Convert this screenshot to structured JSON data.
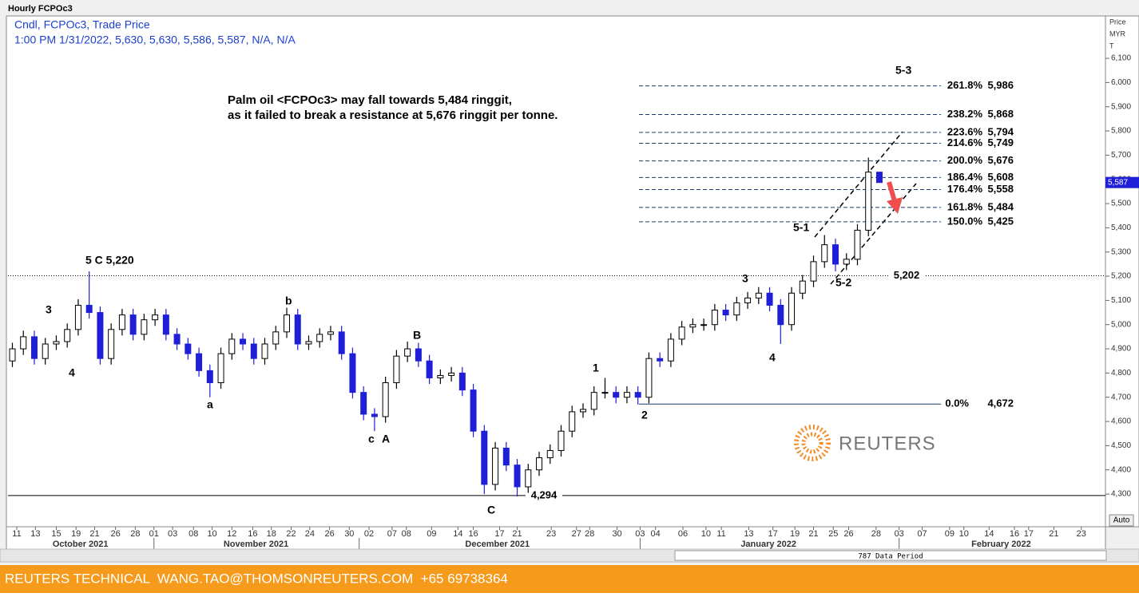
{
  "chart_data": {
    "type": "candlestick",
    "window_title": "Hourly FCPOc3",
    "legend_line1": "Cndl, FCPOc3, Trade Price",
    "legend_line2": "1:00 PM 1/31/2022, 5,630, 5,630, 5,586, 5,587, N/A, N/A",
    "commentary": [
      "Palm oil <FCPOc3> may fall towards 5,484 ringgit,",
      "as it failed to break a resistance at 5,676 ringgit per tonne."
    ],
    "axis_title": [
      "Price",
      "MYR",
      "T"
    ],
    "up_color": "#ffffff",
    "down_color": "#1f1fd8",
    "ylim": [
      4165,
      6275
    ],
    "yticks": [
      {
        "value": 4300,
        "label": "4,300"
      },
      {
        "value": 4400,
        "label": "4,400"
      },
      {
        "value": 4500,
        "label": "4,500"
      },
      {
        "value": 4600,
        "label": "4,600"
      },
      {
        "value": 4700,
        "label": "4,700"
      },
      {
        "value": 4800,
        "label": "4,800"
      },
      {
        "value": 4900,
        "label": "4,900"
      },
      {
        "value": 5000,
        "label": "5,000"
      },
      {
        "value": 5100,
        "label": "5,100"
      },
      {
        "value": 5200,
        "label": "5,200"
      },
      {
        "value": 5300,
        "label": "5,300"
      },
      {
        "value": 5400,
        "label": "5,400"
      },
      {
        "value": 5500,
        "label": "5,500"
      },
      {
        "value": 5600,
        "label": "5,600"
      },
      {
        "value": 5700,
        "label": "5,700"
      },
      {
        "value": 5800,
        "label": "5,800"
      },
      {
        "value": 5900,
        "label": "5,900"
      },
      {
        "value": 6000,
        "label": "6,000"
      },
      {
        "value": 6100,
        "label": "6,100"
      }
    ],
    "xlim": [
      0,
      100
    ],
    "xticks": [
      {
        "value": 0.8,
        "label": "11"
      },
      {
        "value": 2.5,
        "label": "13"
      },
      {
        "value": 4.4,
        "label": "15"
      },
      {
        "value": 6.2,
        "label": "19"
      },
      {
        "value": 7.9,
        "label": "21"
      },
      {
        "value": 9.8,
        "label": "26"
      },
      {
        "value": 11.6,
        "label": "28"
      },
      {
        "value": 13.3,
        "label": "01"
      },
      {
        "value": 15.0,
        "label": "03"
      },
      {
        "value": 16.9,
        "label": "08"
      },
      {
        "value": 18.6,
        "label": "10"
      },
      {
        "value": 20.4,
        "label": "12"
      },
      {
        "value": 22.3,
        "label": "16"
      },
      {
        "value": 24.0,
        "label": "18"
      },
      {
        "value": 25.8,
        "label": "22"
      },
      {
        "value": 27.5,
        "label": "24"
      },
      {
        "value": 29.3,
        "label": "26"
      },
      {
        "value": 31.1,
        "label": "30"
      },
      {
        "value": 32.9,
        "label": "02"
      },
      {
        "value": 35.0,
        "label": "07"
      },
      {
        "value": 36.3,
        "label": "08"
      },
      {
        "value": 38.6,
        "label": "09"
      },
      {
        "value": 41.0,
        "label": "14"
      },
      {
        "value": 42.4,
        "label": "16"
      },
      {
        "value": 44.8,
        "label": "17"
      },
      {
        "value": 46.4,
        "label": "21"
      },
      {
        "value": 49.5,
        "label": "23"
      },
      {
        "value": 51.8,
        "label": "27"
      },
      {
        "value": 53.0,
        "label": "28"
      },
      {
        "value": 55.5,
        "label": "30"
      },
      {
        "value": 57.6,
        "label": "03"
      },
      {
        "value": 59.0,
        "label": "04"
      },
      {
        "value": 61.5,
        "label": "06"
      },
      {
        "value": 63.6,
        "label": "10"
      },
      {
        "value": 65.0,
        "label": "11"
      },
      {
        "value": 67.5,
        "label": "13"
      },
      {
        "value": 69.7,
        "label": "17"
      },
      {
        "value": 71.7,
        "label": "19"
      },
      {
        "value": 73.4,
        "label": "21"
      },
      {
        "value": 75.2,
        "label": "25"
      },
      {
        "value": 76.6,
        "label": "26"
      },
      {
        "value": 79.1,
        "label": "28"
      },
      {
        "value": 81.2,
        "label": "03"
      },
      {
        "value": 83.3,
        "label": "07"
      },
      {
        "value": 85.8,
        "label": "09"
      },
      {
        "value": 87.1,
        "label": "10"
      },
      {
        "value": 89.4,
        "label": "14"
      },
      {
        "value": 91.7,
        "label": "16"
      },
      {
        "value": 93.0,
        "label": "17"
      },
      {
        "value": 95.3,
        "label": "21"
      },
      {
        "value": 97.8,
        "label": "23"
      }
    ],
    "month_ticks": [
      {
        "value": 6.6,
        "label": "October 2021"
      },
      {
        "value": 22.6,
        "label": "November 2021"
      },
      {
        "value": 44.6,
        "label": "December 2021"
      },
      {
        "value": 69.3,
        "label": "January 2022"
      },
      {
        "value": 90.5,
        "label": "February 2022"
      }
    ],
    "month_boundaries": [
      13.3,
      32.0,
      57.6,
      81.2
    ],
    "x": [
      0.4,
      1.4,
      2.4,
      3.4,
      4.4,
      5.4,
      6.4,
      7.4,
      8.4,
      9.4,
      10.4,
      11.4,
      12.4,
      13.4,
      14.4,
      15.4,
      16.4,
      17.4,
      18.4,
      19.4,
      20.4,
      21.4,
      22.4,
      23.4,
      24.4,
      25.4,
      26.4,
      27.4,
      28.4,
      29.4,
      30.4,
      31.4,
      32.4,
      33.4,
      34.4,
      35.4,
      36.4,
      37.4,
      38.4,
      39.4,
      40.4,
      41.4,
      42.4,
      43.4,
      44.4,
      45.4,
      46.4,
      47.4,
      48.4,
      49.4,
      50.4,
      51.4,
      52.4,
      53.4,
      54.4,
      55.4,
      56.4,
      57.4,
      58.4,
      59.4,
      60.4,
      61.4,
      62.4,
      63.4,
      64.4,
      65.4,
      66.4,
      67.4,
      68.4,
      69.4,
      70.4,
      71.4,
      72.4,
      73.4,
      74.4,
      75.4,
      76.4,
      77.4,
      78.4,
      79.4
    ],
    "open": [
      4850,
      4900,
      4950,
      4860,
      4920,
      4930,
      4980,
      5080,
      5050,
      4860,
      4980,
      5040,
      4960,
      5020,
      5040,
      4960,
      4920,
      4880,
      4810,
      4760,
      4880,
      4940,
      4920,
      4860,
      4920,
      4970,
      5040,
      4920,
      4930,
      4960,
      4970,
      4880,
      4720,
      4630,
      4620,
      4760,
      4870,
      4900,
      4850,
      4780,
      4790,
      4800,
      4730,
      4560,
      4340,
      4490,
      4420,
      4330,
      4400,
      4450,
      4480,
      4560,
      4640,
      4650,
      4720,
      4720,
      4700,
      4720,
      4700,
      4860,
      4850,
      4940,
      4990,
      5000,
      5000,
      5060,
      5040,
      5090,
      5110,
      5130,
      5080,
      5000,
      5130,
      5180,
      5260,
      5330,
      5250,
      5270,
      5390,
      5630
    ],
    "high": [
      4925,
      4975,
      4975,
      4945,
      4955,
      5005,
      5105,
      5220,
      5075,
      5005,
      5065,
      5065,
      5045,
      5065,
      5065,
      4985,
      4945,
      4905,
      4835,
      4905,
      4965,
      4965,
      4945,
      4945,
      4995,
      5070,
      5065,
      4955,
      4985,
      4995,
      4995,
      4905,
      4745,
      4655,
      4785,
      4895,
      4930,
      4925,
      4875,
      4815,
      4825,
      4825,
      4755,
      4585,
      4515,
      4515,
      4445,
      4425,
      4475,
      4505,
      4585,
      4665,
      4675,
      4745,
      4780,
      4745,
      4745,
      4745,
      4885,
      4885,
      4965,
      5015,
      5025,
      5025,
      5085,
      5085,
      5115,
      5135,
      5155,
      5155,
      5105,
      5155,
      5205,
      5285,
      5370,
      5355,
      5295,
      5415,
      5690,
      5630
    ],
    "low": [
      4825,
      4875,
      4835,
      4835,
      4895,
      4905,
      4955,
      5025,
      4835,
      4835,
      4955,
      4935,
      4935,
      4995,
      4935,
      4895,
      4855,
      4785,
      4700,
      4735,
      4855,
      4895,
      4835,
      4835,
      4895,
      4945,
      4895,
      4895,
      4905,
      4935,
      4855,
      4695,
      4605,
      4560,
      4595,
      4735,
      4845,
      4825,
      4755,
      4755,
      4765,
      4705,
      4535,
      4300,
      4315,
      4395,
      4290,
      4305,
      4375,
      4425,
      4455,
      4535,
      4615,
      4625,
      4695,
      4675,
      4675,
      4670,
      4675,
      4825,
      4825,
      4915,
      4965,
      4975,
      4975,
      5015,
      5015,
      5065,
      5085,
      5055,
      4920,
      4975,
      5105,
      5155,
      5235,
      5220,
      5225,
      5245,
      5365,
      5586
    ],
    "close": [
      4900,
      4950,
      4860,
      4920,
      4930,
      4980,
      5080,
      5050,
      4860,
      4980,
      5040,
      4960,
      5020,
      5040,
      4960,
      4920,
      4880,
      4810,
      4760,
      4880,
      4940,
      4920,
      4860,
      4920,
      4970,
      5040,
      4920,
      4930,
      4960,
      4970,
      4880,
      4720,
      4630,
      4620,
      4760,
      4870,
      4900,
      4850,
      4780,
      4790,
      4800,
      4730,
      4560,
      4340,
      4490,
      4420,
      4330,
      4400,
      4450,
      4480,
      4560,
      4640,
      4650,
      4720,
      4720,
      4700,
      4720,
      4700,
      4860,
      4850,
      4940,
      4990,
      5000,
      5000,
      5060,
      5040,
      5090,
      5110,
      5130,
      5080,
      5000,
      5130,
      5180,
      5260,
      5330,
      5250,
      5270,
      5390,
      5630,
      5587
    ],
    "last_price": {
      "value": 5587,
      "label": "5,587"
    },
    "fib_levels": [
      {
        "pct": "261.8%",
        "value": 5986,
        "label": "5,986"
      },
      {
        "pct": "238.2%",
        "value": 5868,
        "label": "5,868"
      },
      {
        "pct": "223.6%",
        "value": 5794,
        "label": "5,794"
      },
      {
        "pct": "214.6%",
        "value": 5749,
        "label": "5,749"
      },
      {
        "pct": "200.0%",
        "value": 5676,
        "label": "5,676"
      },
      {
        "pct": "186.4%",
        "value": 5608,
        "label": "5,608"
      },
      {
        "pct": "176.4%",
        "value": 5558,
        "label": "5,558"
      },
      {
        "pct": "161.8%",
        "value": 5484,
        "label": "5,484"
      },
      {
        "pct": "150.0%",
        "value": 5425,
        "label": "5,425"
      }
    ],
    "fib_base": {
      "pct": "0.0%",
      "value": 4672,
      "label": "4,672"
    },
    "support_line": {
      "value": 4294,
      "label": "4,294"
    },
    "reference_line": {
      "value": 5202,
      "label": "5,202"
    },
    "wave_labels": [
      "5 C 5,220",
      "3",
      "4",
      "a",
      "b",
      "c",
      "A",
      "B",
      "C",
      "1",
      "2",
      "3",
      "4",
      "5-1",
      "5-2",
      "5-3"
    ],
    "watermark": "REUTERS",
    "data_period": "787 Data Period",
    "auto_button": "Auto",
    "footer": "REUTERS TECHNICAL  WANG.TAO@THOMSONREUTERS.COM  +65 69738364"
  }
}
